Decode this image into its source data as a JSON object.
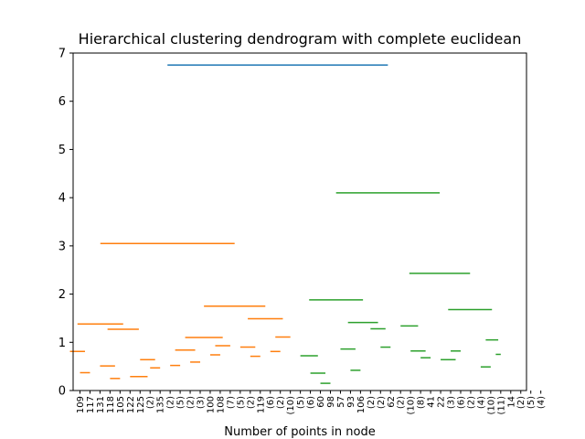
{
  "chart_data": {
    "type": "dendrogram",
    "title": "Hierarchical clustering dendrogram with complete euclidean",
    "xlabel": "Number of points in node",
    "ylabel": "",
    "ylim": [
      0,
      7
    ],
    "yticks": [
      0,
      1,
      2,
      3,
      4,
      5,
      6,
      7
    ],
    "grid": false,
    "leaf_labels": [
      "109",
      "117",
      "131",
      "118",
      "105",
      "122",
      "125",
      "(2)",
      "135",
      "(2)",
      "(5)",
      "(2)",
      "(3)",
      "100",
      "108",
      "(7)",
      "(5)",
      "(2)",
      "119",
      "(6)",
      "(2)",
      "(10)",
      "(5)",
      "(6)",
      "60",
      "98",
      "57",
      "93",
      "106",
      "(2)",
      "(2)",
      "62",
      "(2)",
      "(10)",
      "(8)",
      "41",
      "22",
      "(3)",
      "(6)",
      "(2)",
      "(4)",
      "(10)",
      "(11)",
      "14",
      "(2)",
      "(5)",
      "(4)"
    ],
    "colors": {
      "orange": "#ff7f0e",
      "green": "#2ca02c",
      "blue": "#1f77b4"
    },
    "links": [
      {
        "l": 0,
        "r": 1,
        "h": 0.37,
        "c": "orange"
      },
      {
        "l": -1,
        "r": 0.5,
        "h": 0.81,
        "c": "orange"
      },
      {
        "l": 3,
        "r": 4,
        "h": 0.25,
        "c": "orange"
      },
      {
        "l": 2,
        "r": 3.5,
        "h": 0.51,
        "c": "orange"
      },
      {
        "l": 7,
        "r": 8,
        "h": 0.47,
        "c": "orange"
      },
      {
        "l": 6,
        "r": 7.5,
        "h": 0.64,
        "c": "orange"
      },
      {
        "l": 5,
        "r": 6.75,
        "h": 0.29,
        "c": "orange"
      },
      {
        "l": 2.75,
        "r": 5.875,
        "h": 1.27,
        "c": "orange"
      },
      {
        "l": -0.25,
        "r": 4.3125,
        "h": 1.38,
        "c": "orange"
      },
      {
        "l": 9,
        "r": 10,
        "h": 0.52,
        "c": "orange"
      },
      {
        "l": 11,
        "r": 12,
        "h": 0.59,
        "c": "orange"
      },
      {
        "l": 9.5,
        "r": 11.5,
        "h": 0.84,
        "c": "orange"
      },
      {
        "l": 13,
        "r": 14,
        "h": 0.74,
        "c": "orange"
      },
      {
        "l": 13.5,
        "r": 15,
        "h": 0.93,
        "c": "orange"
      },
      {
        "l": 10.5,
        "r": 14.25,
        "h": 1.1,
        "c": "orange"
      },
      {
        "l": 17,
        "r": 18,
        "h": 0.71,
        "c": "orange"
      },
      {
        "l": 16,
        "r": 17.5,
        "h": 0.9,
        "c": "orange"
      },
      {
        "l": 19,
        "r": 20,
        "h": 0.81,
        "c": "orange"
      },
      {
        "l": 19.5,
        "r": 21,
        "h": 1.11,
        "c": "orange"
      },
      {
        "l": 16.75,
        "r": 20.25,
        "h": 1.49,
        "c": "orange"
      },
      {
        "l": 12.375,
        "r": 18.5,
        "h": 1.75,
        "c": "orange"
      },
      {
        "l": 2.03125,
        "r": 15.4375,
        "h": 3.05,
        "c": "orange"
      },
      {
        "l": 24,
        "r": 25,
        "h": 0.15,
        "c": "green"
      },
      {
        "l": 23,
        "r": 24.5,
        "h": 0.36,
        "c": "green"
      },
      {
        "l": 22,
        "r": 23.75,
        "h": 0.72,
        "c": "green"
      },
      {
        "l": 27,
        "r": 28,
        "h": 0.42,
        "c": "green"
      },
      {
        "l": 26,
        "r": 27.5,
        "h": 0.86,
        "c": "green"
      },
      {
        "l": 30,
        "r": 31,
        "h": 0.9,
        "c": "green"
      },
      {
        "l": 29,
        "r": 30.5,
        "h": 1.28,
        "c": "green"
      },
      {
        "l": 26.75,
        "r": 29.75,
        "h": 1.41,
        "c": "green"
      },
      {
        "l": 22.875,
        "r": 28.25,
        "h": 1.88,
        "c": "green"
      },
      {
        "l": 34,
        "r": 35,
        "h": 0.68,
        "c": "green"
      },
      {
        "l": 33,
        "r": 34.5,
        "h": 0.82,
        "c": "green"
      },
      {
        "l": 32,
        "r": 33.75,
        "h": 1.34,
        "c": "green"
      },
      {
        "l": 37,
        "r": 38,
        "h": 0.82,
        "c": "green"
      },
      {
        "l": 36,
        "r": 37.5,
        "h": 0.64,
        "c": "green"
      },
      {
        "l": 40,
        "r": 41,
        "h": 0.49,
        "c": "green"
      },
      {
        "l": 41.5,
        "r": 42,
        "h": 0.75,
        "c": "green"
      },
      {
        "l": 40.5,
        "r": 41.75,
        "h": 1.05,
        "c": "green"
      },
      {
        "l": 36.75,
        "r": 41.125,
        "h": 1.68,
        "c": "green"
      },
      {
        "l": 32.875,
        "r": 38.9375,
        "h": 2.43,
        "c": "green"
      },
      {
        "l": 25.5625,
        "r": 35.90625,
        "h": 4.1,
        "c": "green"
      },
      {
        "l": 8.734375,
        "r": 30.734375,
        "h": 6.75,
        "c": "blue"
      }
    ]
  }
}
